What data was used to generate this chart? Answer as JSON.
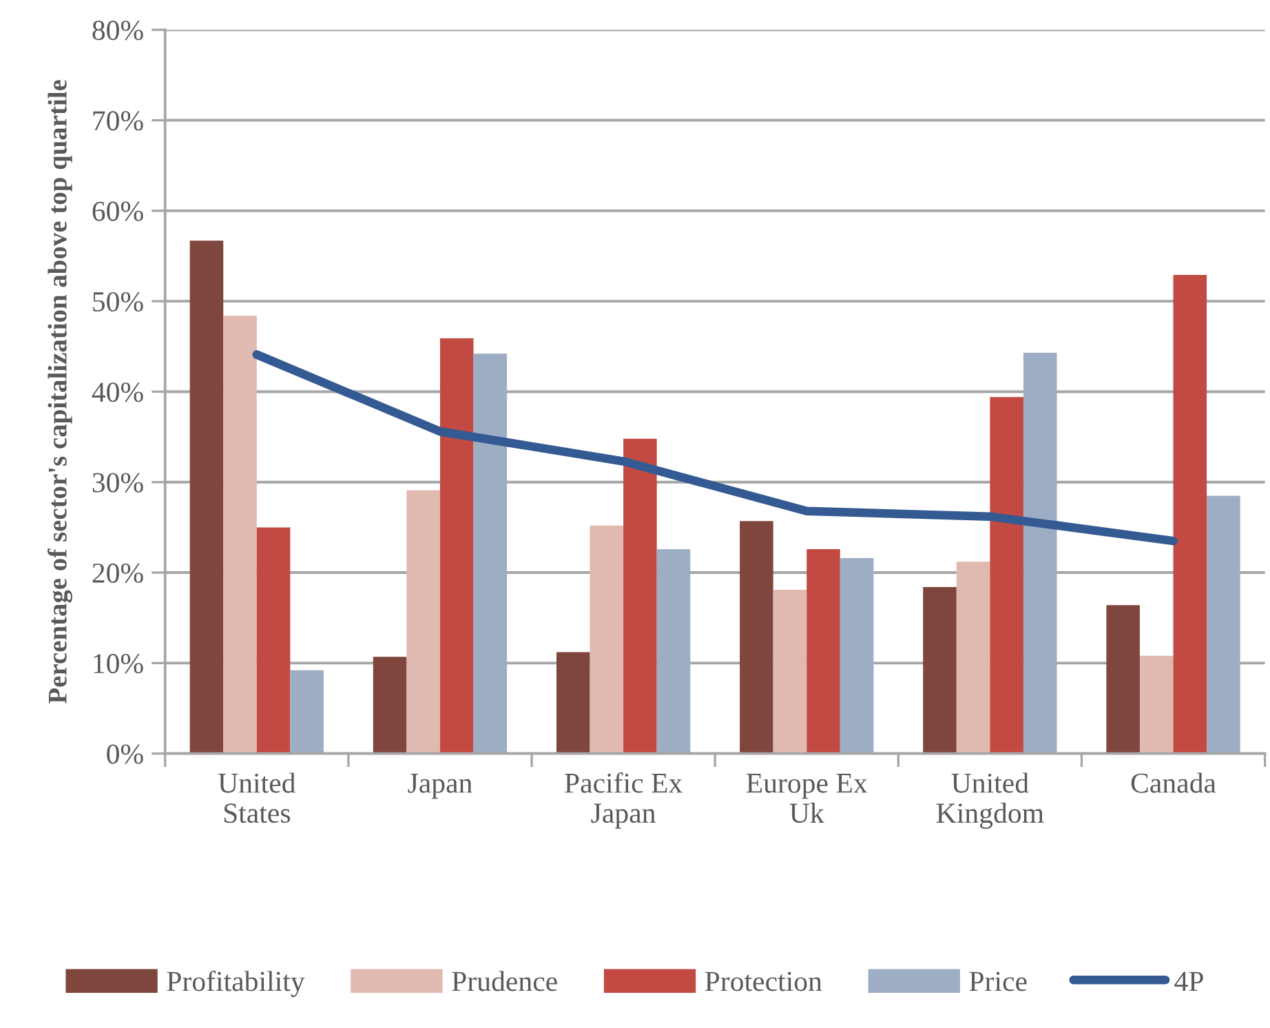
{
  "chart_data": {
    "type": "bar",
    "ylabel": "Percentage of sector's capitalization above top quartile",
    "categories": [
      "United\nStates",
      "Japan",
      "Pacific Ex\nJapan",
      "Europe Ex\nUk",
      "United\nKingdom",
      "Canada"
    ],
    "series": [
      {
        "name": "Profitability",
        "color": "#7f463e",
        "values": [
          56.7,
          10.7,
          11.2,
          25.7,
          18.4,
          16.4
        ]
      },
      {
        "name": "Prudence",
        "color": "#e0b9b0",
        "values": [
          48.4,
          29.1,
          25.2,
          18.1,
          21.2,
          10.8
        ]
      },
      {
        "name": "Protection",
        "color": "#c34a42",
        "values": [
          25.0,
          45.9,
          34.8,
          22.6,
          39.4,
          52.9
        ]
      },
      {
        "name": "Price",
        "color": "#9dadc4",
        "values": [
          9.2,
          44.2,
          22.6,
          21.6,
          44.3,
          28.5
        ]
      },
      {
        "name": "4P",
        "type": "line",
        "color": "#335a92",
        "values": [
          44.1,
          35.6,
          32.3,
          26.8,
          26.2,
          23.5
        ]
      }
    ],
    "ylim": [
      0,
      80
    ],
    "yticks": [
      {
        "value": 0,
        "label": "0%"
      },
      {
        "value": 10,
        "label": "10%"
      },
      {
        "value": 20,
        "label": "20%"
      },
      {
        "value": 30,
        "label": "30%"
      },
      {
        "value": 40,
        "label": "40%"
      },
      {
        "value": 50,
        "label": "50%"
      },
      {
        "value": 60,
        "label": "60%"
      },
      {
        "value": 70,
        "label": "70%"
      },
      {
        "value": 80,
        "label": "80%"
      }
    ],
    "grid": "y",
    "legend": "bottom"
  }
}
